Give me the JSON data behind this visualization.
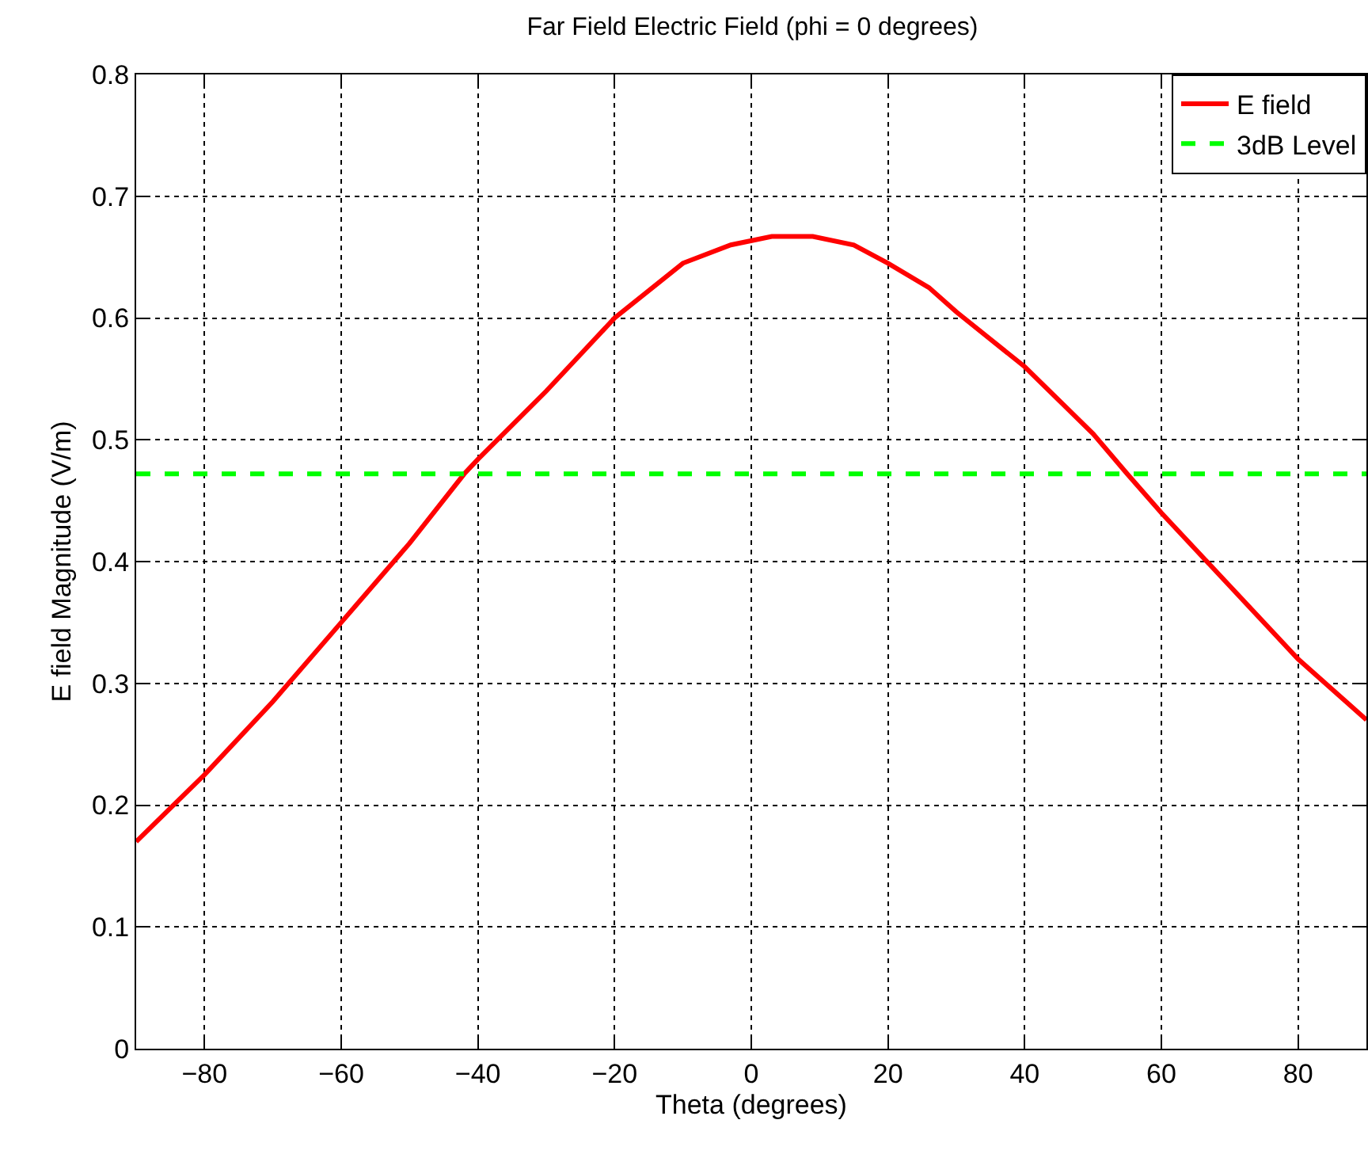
{
  "chart_data": {
    "type": "line",
    "title": "Far Field Electric Field (phi = 0 degrees)",
    "xlabel": "Theta (degrees)",
    "ylabel": "E field Magnitude (V/m)",
    "x": [
      -90,
      -80,
      -70,
      -60,
      -50,
      -42,
      -40,
      -30,
      -20,
      -10,
      -3,
      3,
      9,
      15,
      20,
      26,
      30,
      40,
      50,
      55,
      60,
      70,
      80,
      90
    ],
    "series": [
      {
        "name": "E field",
        "color": "#ff0000",
        "values": [
          0.17,
          0.225,
          0.285,
          0.35,
          0.415,
          0.472,
          0.484,
          0.54,
          0.6,
          0.645,
          0.66,
          0.667,
          0.667,
          0.66,
          0.645,
          0.625,
          0.605,
          0.56,
          0.505,
          0.472,
          0.44,
          0.38,
          0.32,
          0.27
        ]
      }
    ],
    "ref_lines": [
      {
        "axis": "y",
        "value": 0.472,
        "label": "3dB Level",
        "color": "#00ff00",
        "line_style": "dashed"
      }
    ],
    "xlim": [
      -90,
      90
    ],
    "xticks": [
      -80,
      -60,
      -40,
      -20,
      0,
      20,
      40,
      60,
      80
    ],
    "ylim": [
      0,
      0.8
    ],
    "yticks": [
      0,
      0.1,
      0.2,
      0.3,
      0.4,
      0.5,
      0.6,
      0.7,
      0.8
    ],
    "grid": true,
    "legend": "top right",
    "marker": "none",
    "line_style": "solid"
  }
}
